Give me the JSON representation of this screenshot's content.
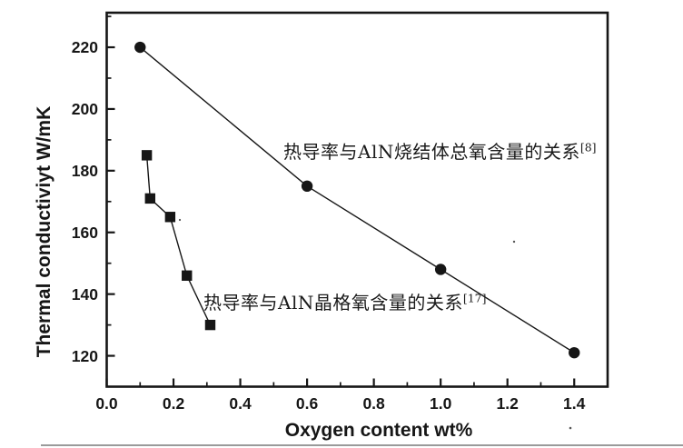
{
  "page": {
    "background": "#ffffff",
    "scan_edge_color": "#9a9a9a"
  },
  "chart_data": {
    "type": "line",
    "title": "",
    "xlabel": "Oxygen content wt%",
    "ylabel": "Thermal conductiviyt W/mK",
    "xlim": [
      0,
      1.5
    ],
    "ylim": [
      110,
      231.2
    ],
    "grid": false,
    "ink_color": "#161616",
    "legend_position": "inline annotations next to curves",
    "x_major_ticks": [
      0.0,
      0.2,
      0.4,
      0.6,
      0.8,
      1.0,
      1.2,
      1.4
    ],
    "x_tick_labels": [
      "0.0",
      "0.2",
      "0.4",
      "0.6",
      "0.8",
      "1.0",
      "1.2",
      "1.4"
    ],
    "x_minor_ticks": [
      0.1,
      0.3,
      0.5,
      0.7,
      0.9,
      1.1,
      1.3
    ],
    "y_major_ticks": [
      120,
      140,
      160,
      180,
      200,
      220
    ],
    "y_tick_labels": [
      "120",
      "140",
      "160",
      "180",
      "200",
      "220"
    ],
    "y_minor_ticks": [
      130,
      150,
      170,
      190,
      210,
      230
    ],
    "series": [
      {
        "name": "热导率与AlN烧结体总氧含量的关系",
        "ref": "[8]",
        "marker": "circle",
        "x": [
          0.1,
          0.6,
          1.0,
          1.4
        ],
        "y": [
          220,
          175,
          148,
          121
        ]
      },
      {
        "name": "热导率与AlN晶格氧含量的关系",
        "ref": "[17]",
        "marker": "square",
        "x": [
          0.12,
          0.13,
          0.19,
          0.24,
          0.31
        ],
        "y": [
          185,
          171,
          165,
          146,
          130
        ]
      }
    ]
  }
}
